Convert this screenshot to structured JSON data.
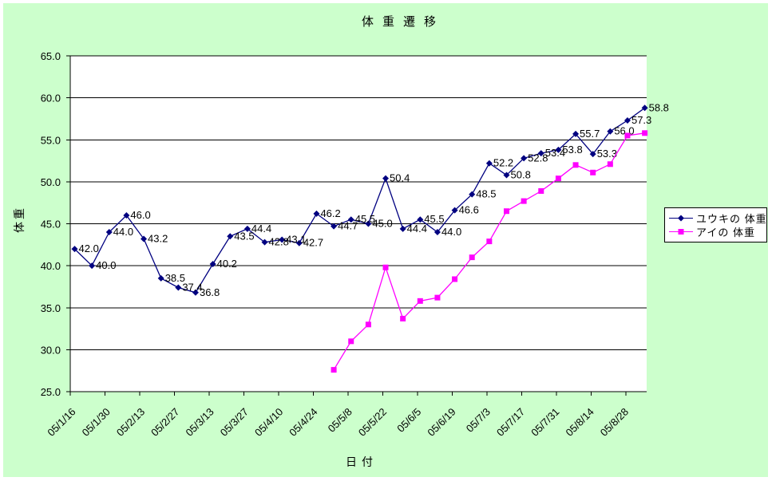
{
  "chart_data": {
    "type": "line",
    "title": "体重遷移",
    "xlabel": "日付",
    "ylabel": "体重",
    "ylim": [
      25,
      65
    ],
    "ytick_step": 5,
    "ytick_labels": [
      "25.0",
      "30.0",
      "35.0",
      "40.0",
      "45.0",
      "50.0",
      "55.0",
      "60.0",
      "65.0"
    ],
    "x_tick_labels": [
      "05/1/16",
      "05/1/30",
      "05/2/13",
      "05/2/27",
      "05/3/13",
      "05/3/27",
      "05/4/10",
      "05/4/24",
      "05/5/8",
      "05/5/22",
      "05/6/5",
      "05/6/19",
      "05/7/3",
      "05/7/17",
      "05/7/31",
      "05/8/14",
      "05/8/28"
    ],
    "x_tick_interval": 2,
    "grid": true,
    "legend_position": "right",
    "colors": {
      "chart_bg": "#ccffcc",
      "plot_bg": "#ffffff",
      "grid": "#000000",
      "text": "#000000"
    },
    "series": [
      {
        "name": "ユウキの 体重",
        "color": "#000080",
        "marker": "diamond",
        "start_index": 0,
        "values": [
          42.0,
          40.0,
          44.0,
          46.0,
          43.2,
          38.5,
          37.4,
          36.8,
          40.2,
          43.5,
          44.4,
          42.8,
          43.1,
          42.7,
          46.2,
          44.7,
          45.5,
          45.0,
          50.4,
          44.4,
          45.5,
          44.0,
          46.6,
          48.5,
          52.2,
          50.8,
          52.8,
          53.4,
          53.8,
          55.7,
          53.3,
          56.0,
          57.3,
          58.8
        ],
        "labels": [
          "42.0",
          "40.0",
          "44.0",
          "46.0",
          "43.2",
          "38.5",
          "37.4",
          "36.8",
          "40.2",
          "43.5",
          "44.4",
          "42.8",
          "43.1",
          "42.7",
          "46.2",
          "44.7",
          "45.5",
          "45.0",
          "50.4",
          "44.4",
          "45.5",
          "44.0",
          "46.6",
          "48.5",
          "52.2",
          "50.8",
          "52.8",
          "53.4",
          "53.8",
          "55.7",
          "53.3",
          "56.0",
          "57.3",
          "58.8"
        ]
      },
      {
        "name": "アイの 体重",
        "color": "#ff00ff",
        "marker": "square",
        "start_index": 15,
        "values": [
          27.6,
          31.0,
          33.0,
          39.8,
          33.7,
          35.8,
          36.2,
          38.4,
          41.0,
          42.9,
          46.5,
          47.7,
          48.9,
          50.4,
          52.0,
          51.1,
          52.1,
          55.5,
          55.8
        ]
      }
    ]
  }
}
